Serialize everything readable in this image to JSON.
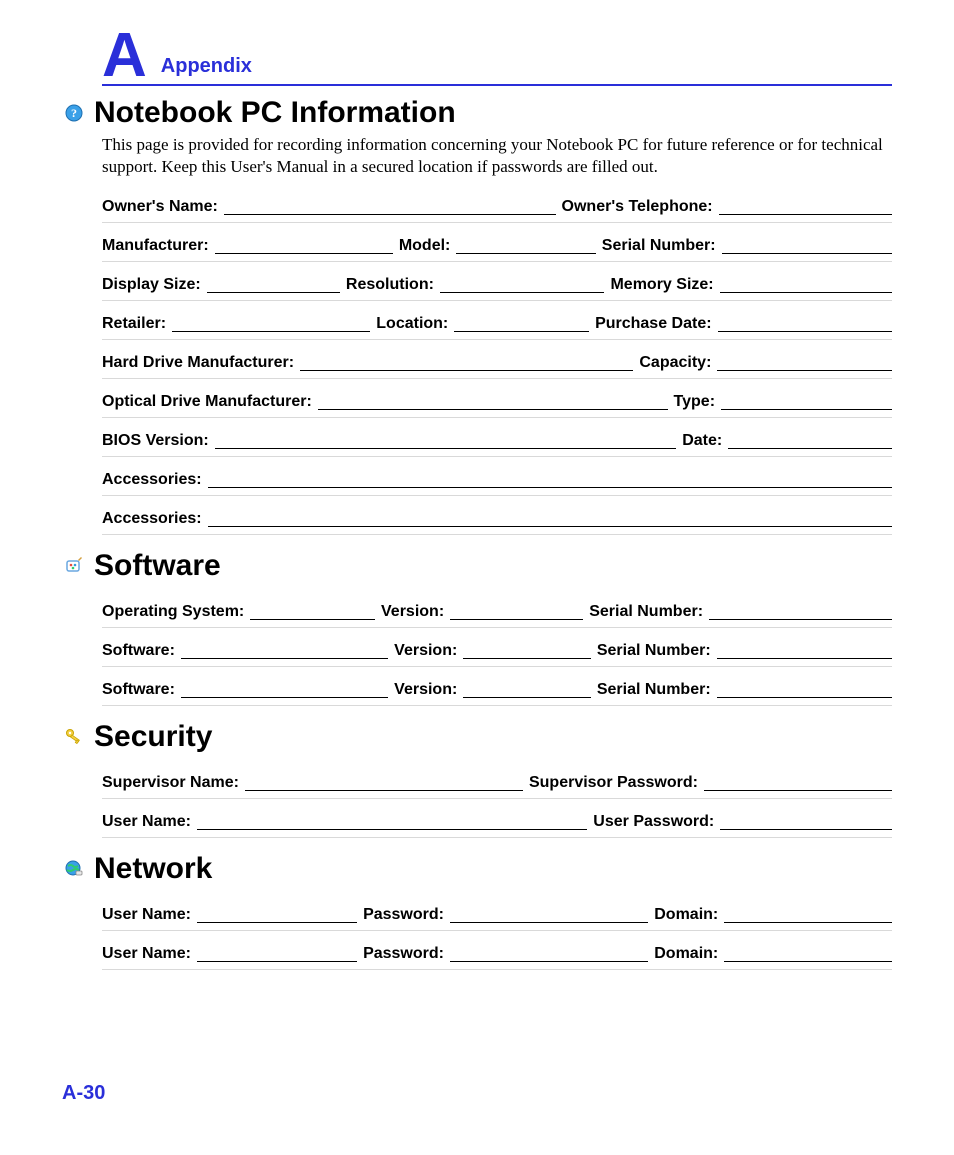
{
  "colors": {
    "accent": "#2a2fd9",
    "text": "#000000",
    "rule": "#d9d9d9",
    "background": "#ffffff"
  },
  "typography": {
    "body_font": "Helvetica",
    "intro_font": "Georgia serif",
    "big_A_size_pt": 46,
    "appendix_size_pt": 15,
    "section_title_size_pt": 22,
    "label_size_pt": 12,
    "intro_size_pt": 13
  },
  "header": {
    "letter": "A",
    "label": "Appendix"
  },
  "page_number": "A-30",
  "sections": {
    "info": {
      "title": "Notebook PC Information",
      "icon": "help-circle",
      "intro": "This page is provided for recording information concerning your Notebook PC for future reference or for technical support. Keep this User's Manual in a secured location if passwords are filled out.",
      "rows": [
        [
          {
            "label": "Owner's Name:",
            "flex": 4.4
          },
          {
            "label": "Owner's Telephone:",
            "flex": 2.3
          }
        ],
        [
          {
            "label": "Manufacturer:",
            "flex": 2.3
          },
          {
            "label": "Model:",
            "flex": 1.8
          },
          {
            "label": "Serial Number:",
            "flex": 2.2
          }
        ],
        [
          {
            "label": "Display Size:",
            "flex": 1.7
          },
          {
            "label": "Resolution:",
            "flex": 2.1
          },
          {
            "label": "Memory Size:",
            "flex": 2.2
          }
        ],
        [
          {
            "label": "Retailer:",
            "flex": 2.5
          },
          {
            "label": "Location:",
            "flex": 1.7
          },
          {
            "label": "Purchase Date:",
            "flex": 2.2
          }
        ],
        [
          {
            "label": "Hard Drive Manufacturer:",
            "flex": 4.2
          },
          {
            "label": "Capacity:",
            "flex": 2.2
          }
        ],
        [
          {
            "label": "Optical Drive Manufacturer:",
            "flex": 4.5
          },
          {
            "label": "Type:",
            "flex": 2.2
          }
        ],
        [
          {
            "label": "BIOS Version:",
            "flex": 6.2
          },
          {
            "label": "Date:",
            "flex": 2.2
          }
        ],
        [
          {
            "label": "Accessories:",
            "flex": 9
          }
        ],
        [
          {
            "label": "Accessories:",
            "flex": 9
          }
        ]
      ]
    },
    "software": {
      "title": "Software",
      "icon": "painter-palette",
      "rows": [
        [
          {
            "label": "Operating System:",
            "flex": 1.5
          },
          {
            "label": "Version:",
            "flex": 1.6
          },
          {
            "label": "Serial Number:",
            "flex": 2.2
          }
        ],
        [
          {
            "label": "Software:",
            "flex": 2.6
          },
          {
            "label": "Version:",
            "flex": 1.6
          },
          {
            "label": "Serial Number:",
            "flex": 2.2
          }
        ],
        [
          {
            "label": "Software:",
            "flex": 2.6
          },
          {
            "label": "Version:",
            "flex": 1.6
          },
          {
            "label": "Serial Number:",
            "flex": 2.2
          }
        ]
      ]
    },
    "security": {
      "title": "Security",
      "icon": "keys",
      "rows": [
        [
          {
            "label": "Supervisor Name:",
            "flex": 3.4
          },
          {
            "label": "Supervisor Password:",
            "flex": 2.3
          }
        ],
        [
          {
            "label": "User Name:",
            "flex": 5.0
          },
          {
            "label": "User Password:",
            "flex": 2.2
          }
        ]
      ]
    },
    "network": {
      "title": "Network",
      "icon": "globe",
      "rows": [
        [
          {
            "label": "User Name:",
            "flex": 2.1
          },
          {
            "label": "Password:",
            "flex": 2.6
          },
          {
            "label": "Domain:",
            "flex": 2.2
          }
        ],
        [
          {
            "label": "User Name:",
            "flex": 2.1
          },
          {
            "label": "Password:",
            "flex": 2.6
          },
          {
            "label": "Domain:",
            "flex": 2.2
          }
        ]
      ]
    }
  }
}
